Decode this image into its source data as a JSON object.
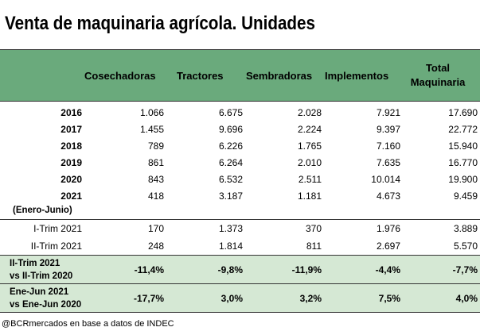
{
  "title": "Venta de maquinaria agrícola. Unidades",
  "headers": {
    "cosechadoras": "Cosechadoras",
    "tractores": "Tractores",
    "sembradoras": "Sembradoras",
    "implementos": "Implementos",
    "total_line1": "Total",
    "total_line2": "Maquinaria"
  },
  "years": [
    {
      "label": "2016",
      "values": [
        "1.066",
        "6.675",
        "2.028",
        "7.921",
        "17.690"
      ]
    },
    {
      "label": "2017",
      "values": [
        "1.455",
        "9.696",
        "2.224",
        "9.397",
        "22.772"
      ]
    },
    {
      "label": "2018",
      "values": [
        "789",
        "6.226",
        "1.765",
        "7.160",
        "15.940"
      ]
    },
    {
      "label": "2019",
      "values": [
        "861",
        "6.264",
        "2.010",
        "7.635",
        "16.770"
      ]
    },
    {
      "label": "2020",
      "values": [
        "843",
        "6.532",
        "2.511",
        "10.014",
        "19.900"
      ]
    },
    {
      "label": "2021",
      "values": [
        "418",
        "3.187",
        "1.181",
        "4.673",
        "9.459"
      ]
    }
  ],
  "year_note": "(Enero-Junio)",
  "trims": [
    {
      "label": "I-Trim 2021",
      "values": [
        "170",
        "1.373",
        "370",
        "1.976",
        "3.889"
      ]
    },
    {
      "label": "II-Trim 2021",
      "values": [
        "248",
        "1.814",
        "811",
        "2.697",
        "5.570"
      ]
    }
  ],
  "variations": [
    {
      "line1": "II-Trim  2021",
      "line2": "vs II-Trim 2020",
      "values": [
        "-11,4%",
        "-9,8%",
        "-11,9%",
        "-4,4%",
        "-7,7%"
      ]
    },
    {
      "line1": "Ene-Jun 2021",
      "line2": "vs Ene-Jun 2020",
      "values": [
        "-17,7%",
        "3,0%",
        "3,2%",
        "7,5%",
        "4,0%"
      ]
    }
  ],
  "footer": "@BCRmercados en base a datos de INDEC",
  "colors": {
    "header_bg": "#6aaa7c",
    "variation_bg": "#d5e8d4"
  }
}
